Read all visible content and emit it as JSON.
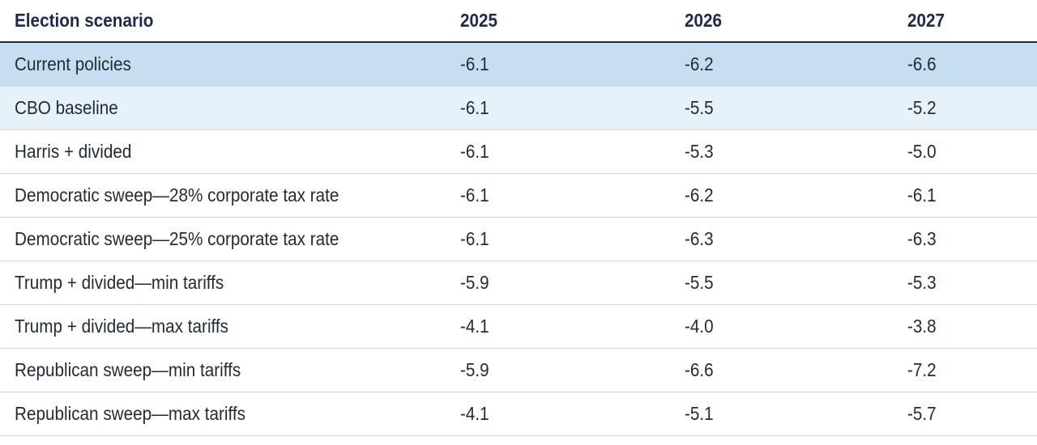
{
  "chart_data": {
    "type": "table",
    "columns": [
      "Election scenario",
      "2025",
      "2026",
      "2027"
    ],
    "rows": [
      {
        "label": "Current policies",
        "values": [
          "-6.1",
          "-6.2",
          "-6.6"
        ]
      },
      {
        "label": "CBO baseline",
        "values": [
          "-6.1",
          "-5.5",
          "-5.2"
        ]
      },
      {
        "label": "Harris + divided",
        "values": [
          "-6.1",
          "-5.3",
          "-5.0"
        ]
      },
      {
        "label": "Democratic sweep—28% corporate tax rate",
        "values": [
          "-6.1",
          "-6.2",
          "-6.1"
        ]
      },
      {
        "label": "Democratic sweep—25% corporate tax rate",
        "values": [
          "-6.1",
          "-6.3",
          "-6.3"
        ]
      },
      {
        "label": "Trump + divided—min tariffs",
        "values": [
          "-5.9",
          "-5.5",
          "-5.3"
        ]
      },
      {
        "label": "Trump + divided—max tariffs",
        "values": [
          "-4.1",
          "-4.0",
          "-3.8"
        ]
      },
      {
        "label": "Republican sweep—min tariffs",
        "values": [
          "-5.9",
          "-6.6",
          "-7.2"
        ]
      },
      {
        "label": "Republican sweep—max tariffs",
        "values": [
          "-4.1",
          "-5.1",
          "-5.7"
        ]
      }
    ],
    "highlight_colors": {
      "row_0": "#c5dff0",
      "row_1": "#e6f1f9"
    },
    "header_rule_color": "#1c2b4a"
  }
}
